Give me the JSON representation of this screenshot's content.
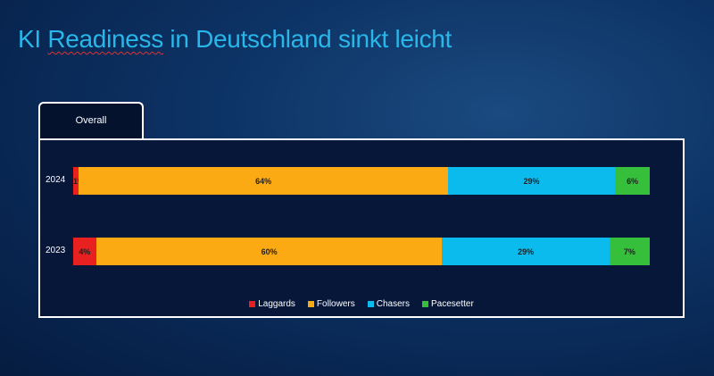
{
  "title_parts": [
    "KI ",
    "Readiness",
    " in Deutschland sinkt leicht"
  ],
  "tab": "Overall",
  "chart_data": {
    "type": "bar",
    "orientation": "horizontal",
    "stacked": true,
    "categories": [
      "2024",
      "2023"
    ],
    "series": [
      {
        "name": "Laggards",
        "color": "#e8201f",
        "values": [
          1,
          4
        ],
        "labels": [
          "1%",
          "4%"
        ]
      },
      {
        "name": "Followers",
        "color": "#fbaa14",
        "values": [
          64,
          60
        ],
        "labels": [
          "64%",
          "60%"
        ]
      },
      {
        "name": "Chasers",
        "color": "#0bbbee",
        "values": [
          29,
          29
        ],
        "labels": [
          "29%",
          "29%"
        ]
      },
      {
        "name": "Pacesetter",
        "color": "#35bf3a",
        "values": [
          6,
          7
        ],
        "labels": [
          "6%",
          "7%"
        ]
      }
    ],
    "xlim": [
      0,
      100
    ],
    "grid": false,
    "legend": "bottom"
  }
}
